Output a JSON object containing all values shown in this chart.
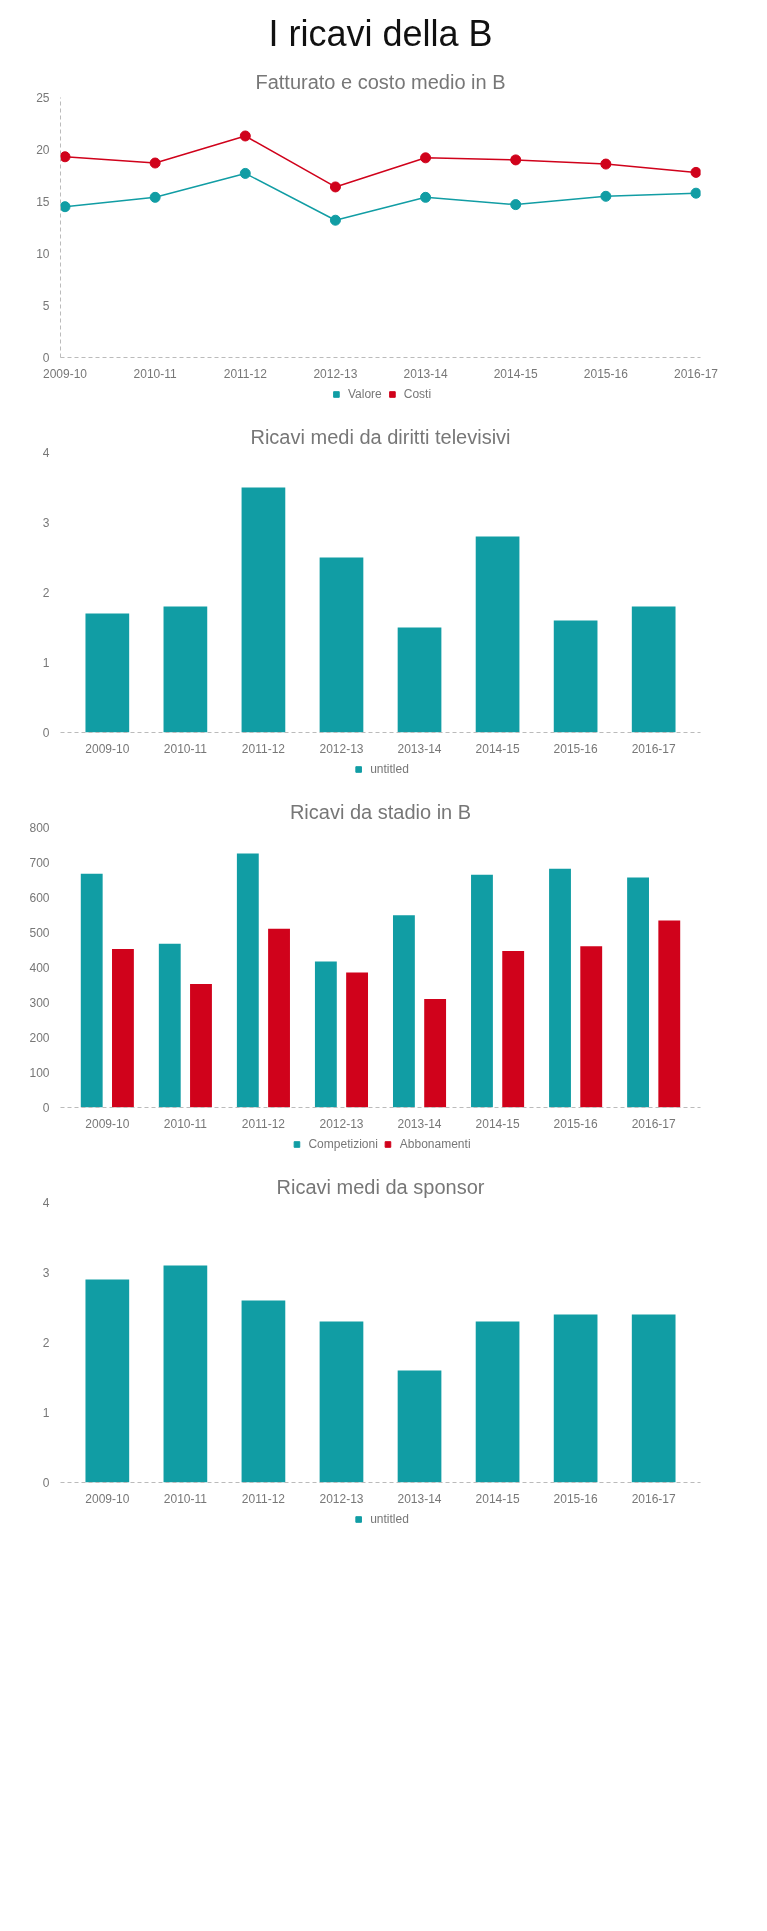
{
  "chart_data": [
    {
      "type": "line",
      "title": "I ricavi della B",
      "subtitle": "Fatturato e costo medio in B",
      "categories": [
        "2009-10",
        "2010-11",
        "2011-12",
        "2012-13",
        "2013-14",
        "2014-15",
        "2015-16",
        "2016-17"
      ],
      "series": [
        {
          "name": "Valore",
          "color": "#119da4",
          "values": [
            14.5,
            15.4,
            17.7,
            13.2,
            15.4,
            14.7,
            15.5,
            15.8
          ]
        },
        {
          "name": "Costi",
          "color": "#d0021b",
          "values": [
            19.3,
            18.7,
            21.3,
            16.4,
            19.2,
            19.0,
            18.6,
            17.8
          ]
        }
      ],
      "ylim": [
        0,
        25
      ],
      "yticks": [
        0,
        5,
        10,
        15,
        20,
        25
      ],
      "grid": false,
      "legend": "bottom",
      "marker": "circle",
      "line_style": "solid"
    },
    {
      "type": "bar",
      "title": "Ricavi medi da diritti televisivi",
      "categories": [
        "2009-10",
        "2010-11",
        "2011-12",
        "2012-13",
        "2013-14",
        "2014-15",
        "2015-16",
        "2016-17"
      ],
      "series": [
        {
          "name": "untitled",
          "color": "#119da4",
          "values": [
            1.7,
            1.8,
            3.5,
            2.5,
            1.5,
            2.8,
            1.6,
            1.8
          ]
        }
      ],
      "ylim": [
        0,
        4
      ],
      "yticks": [
        0,
        1,
        2,
        3,
        4
      ],
      "grid": false,
      "legend": "bottom"
    },
    {
      "type": "bar",
      "title": "Ricavi da stadio in B",
      "categories": [
        "2009-10",
        "2010-11",
        "2011-12",
        "2012-13",
        "2013-14",
        "2014-15",
        "2015-16",
        "2016-17"
      ],
      "series": [
        {
          "name": "Competizioni",
          "color": "#119da4",
          "values": [
            668,
            468,
            726,
            417,
            549,
            665,
            682,
            657
          ]
        },
        {
          "name": "Abbonamenti",
          "color": "#d0021b",
          "values": [
            453,
            353,
            511,
            386,
            310,
            447,
            461,
            534
          ]
        }
      ],
      "ylim": [
        0,
        800
      ],
      "yticks": [
        0,
        100,
        200,
        300,
        400,
        500,
        600,
        700,
        800
      ],
      "grid": false,
      "legend": "bottom"
    },
    {
      "type": "bar",
      "title": "Ricavi medi da sponsor",
      "categories": [
        "2009-10",
        "2010-11",
        "2011-12",
        "2012-13",
        "2013-14",
        "2014-15",
        "2015-16",
        "2016-17"
      ],
      "series": [
        {
          "name": "untitled",
          "color": "#119da4",
          "values": [
            2.9,
            3.1,
            2.6,
            2.3,
            1.6,
            2.3,
            2.4,
            2.4
          ]
        }
      ],
      "ylim": [
        0,
        4
      ],
      "yticks": [
        0,
        1,
        2,
        3,
        4
      ],
      "grid": false,
      "legend": "bottom"
    }
  ]
}
